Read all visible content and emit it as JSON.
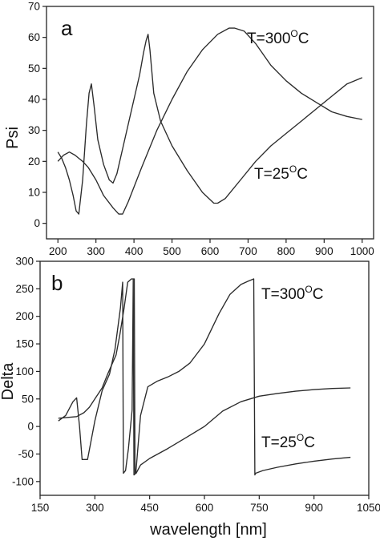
{
  "chart_data": [
    {
      "type": "line",
      "panel_label": "a",
      "xlabel": "",
      "ylabel": "Psi",
      "xlim": [
        170,
        1030
      ],
      "ylim": [
        -5,
        70
      ],
      "xticks": [
        200,
        300,
        400,
        500,
        600,
        700,
        800,
        900,
        1000
      ],
      "yticks": [
        0,
        10,
        20,
        30,
        40,
        50,
        60,
        70
      ],
      "series": [
        {
          "name": "T=300°C",
          "label_main": "T=300",
          "label_sup": "O",
          "label_end": "C",
          "x": [
            200,
            215,
            230,
            245,
            255,
            265,
            280,
            300,
            320,
            345,
            360,
            370,
            385,
            420,
            460,
            500,
            540,
            580,
            620,
            650,
            665,
            690,
            720,
            760,
            800,
            840,
            880,
            920,
            960,
            1000
          ],
          "y": [
            20,
            22,
            23,
            22,
            21,
            20,
            18,
            14,
            9,
            5,
            3,
            3,
            7,
            18,
            30,
            40,
            49,
            56,
            61,
            63,
            63,
            62,
            58,
            51,
            46,
            42,
            39,
            36,
            34.5,
            33.5
          ]
        },
        {
          "name": "T=25°C",
          "label_main": "T=25",
          "label_sup": "O",
          "label_end": "C",
          "x": [
            200,
            210,
            220,
            230,
            240,
            248,
            255,
            265,
            275,
            282,
            288,
            295,
            305,
            320,
            335,
            345,
            355,
            370,
            385,
            400,
            415,
            425,
            432,
            437,
            442,
            452,
            470,
            500,
            540,
            580,
            610,
            620,
            640,
            680,
            720,
            760,
            800,
            840,
            880,
            920,
            960,
            1000
          ],
          "y": [
            23,
            21,
            18,
            14,
            9,
            4,
            3,
            14,
            32,
            42,
            45,
            38,
            27,
            19,
            14,
            13,
            16,
            24,
            32,
            40,
            48,
            55,
            59,
            61,
            56,
            42,
            33,
            25,
            17,
            10,
            6.5,
            6.5,
            8,
            14,
            20,
            25,
            29,
            33,
            37,
            41,
            45,
            47
          ]
        }
      ]
    },
    {
      "type": "line",
      "panel_label": "b",
      "xlabel": "wavelength [nm]",
      "ylabel": "Delta",
      "xlim": [
        150,
        1050
      ],
      "ylim": [
        -125,
        300
      ],
      "xticks": [
        150,
        300,
        450,
        600,
        750,
        900,
        1050
      ],
      "yticks": [
        -100,
        -50,
        0,
        50,
        100,
        150,
        200,
        250,
        300
      ],
      "series": [
        {
          "name": "T=300°C",
          "label_main": "T=300",
          "label_sup": "O",
          "label_end": "C",
          "x": [
            200,
            220,
            240,
            250,
            258,
            265,
            280,
            300,
            320,
            340,
            355,
            370,
            376,
            378,
            384,
            392,
            402,
            405,
            407,
            412,
            425,
            445,
            470,
            500,
            530,
            560,
            600,
            640,
            670,
            700,
            720,
            735,
            738,
            740,
            760,
            800,
            850,
            900,
            950,
            1000
          ],
          "y": [
            10,
            20,
            45,
            52,
            0,
            -60,
            -60,
            10,
            65,
            95,
            140,
            215,
            262,
            -85,
            -80,
            -40,
            30,
            268,
            -88,
            -85,
            20,
            72,
            82,
            90,
            100,
            115,
            150,
            205,
            240,
            258,
            264,
            268,
            -88,
            -85,
            -80,
            -74,
            -68,
            -63,
            -59,
            -56
          ]
        },
        {
          "name": "T=25°C",
          "label_main": "T=25",
          "label_sup": "O",
          "label_end": "C",
          "x": [
            200,
            220,
            250,
            270,
            285,
            300,
            320,
            335,
            345,
            358,
            368,
            380,
            390,
            400,
            408,
            410,
            413,
            425,
            450,
            500,
            550,
            600,
            650,
            700,
            750,
            800,
            850,
            900,
            950,
            1000
          ],
          "y": [
            15,
            16,
            18,
            25,
            35,
            50,
            70,
            95,
            110,
            130,
            165,
            215,
            262,
            268,
            268,
            -85,
            -85,
            -70,
            -58,
            -40,
            -20,
            0,
            28,
            45,
            55,
            60,
            64,
            67,
            69,
            70
          ]
        }
      ]
    }
  ]
}
